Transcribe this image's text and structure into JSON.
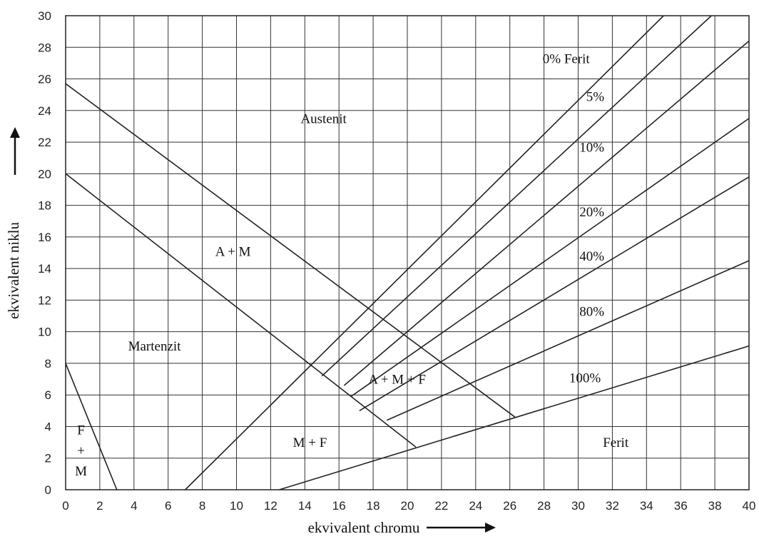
{
  "chart_data": {
    "type": "line",
    "title": "",
    "xlabel": "ekvivalent chromu",
    "ylabel": "ekvivalent niklu",
    "xlim": [
      0,
      40
    ],
    "ylim": [
      0,
      30
    ],
    "x_ticks": [
      0,
      2,
      4,
      6,
      8,
      10,
      12,
      14,
      16,
      18,
      20,
      22,
      24,
      26,
      28,
      30,
      32,
      34,
      36,
      38,
      40
    ],
    "y_ticks": [
      0,
      2,
      4,
      6,
      8,
      10,
      12,
      14,
      16,
      18,
      20,
      22,
      24,
      26,
      28,
      30
    ],
    "grid": true,
    "series": [
      {
        "points": [
          [
            0,
            8
          ],
          [
            3,
            0
          ]
        ]
      },
      {
        "points": [
          [
            0,
            20
          ],
          [
            20.5,
            2.7
          ]
        ]
      },
      {
        "points": [
          [
            0,
            25.7
          ],
          [
            26.3,
            4.6
          ]
        ]
      },
      {
        "points": [
          [
            7,
            0
          ],
          [
            35,
            30
          ]
        ]
      },
      {
        "points": [
          [
            15,
            7.2
          ],
          [
            37.8,
            30
          ]
        ]
      },
      {
        "points": [
          [
            16.3,
            6.6
          ],
          [
            40,
            28.4
          ]
        ]
      },
      {
        "points": [
          [
            16.7,
            5.9
          ],
          [
            40,
            23.5
          ]
        ]
      },
      {
        "points": [
          [
            17.2,
            5.0
          ],
          [
            40,
            19.8
          ]
        ]
      },
      {
        "points": [
          [
            18.8,
            4.4
          ],
          [
            40,
            14.5
          ]
        ]
      },
      {
        "points": [
          [
            12.5,
            0
          ],
          [
            40,
            9.1
          ]
        ]
      }
    ],
    "annotations": [
      {
        "text": "Austenit",
        "x": 15.1,
        "y": 23.2
      },
      {
        "text": "A + M",
        "x": 9.8,
        "y": 14.8
      },
      {
        "text": "Martenzit",
        "x": 5.2,
        "y": 8.8
      },
      {
        "text": "A + M + F",
        "x": 19.4,
        "y": 6.7
      },
      {
        "text": "M + F",
        "x": 14.3,
        "y": 2.7
      },
      {
        "text": "Ferit",
        "x": 32.2,
        "y": 2.7
      },
      {
        "text": "F",
        "x": 0.9,
        "y": 3.5
      },
      {
        "text": "+",
        "x": 0.9,
        "y": 2.2
      },
      {
        "text": "M",
        "x": 0.9,
        "y": 0.9
      },
      {
        "text": "0% Ferit",
        "x": 29.3,
        "y": 27
      },
      {
        "text": "5%",
        "x": 31.0,
        "y": 24.6
      },
      {
        "text": "10%",
        "x": 30.8,
        "y": 21.4
      },
      {
        "text": "20%",
        "x": 30.8,
        "y": 17.3
      },
      {
        "text": "40%",
        "x": 30.8,
        "y": 14.5
      },
      {
        "text": "80%",
        "x": 30.8,
        "y": 11.0
      },
      {
        "text": "100%",
        "x": 30.4,
        "y": 6.8
      }
    ]
  }
}
